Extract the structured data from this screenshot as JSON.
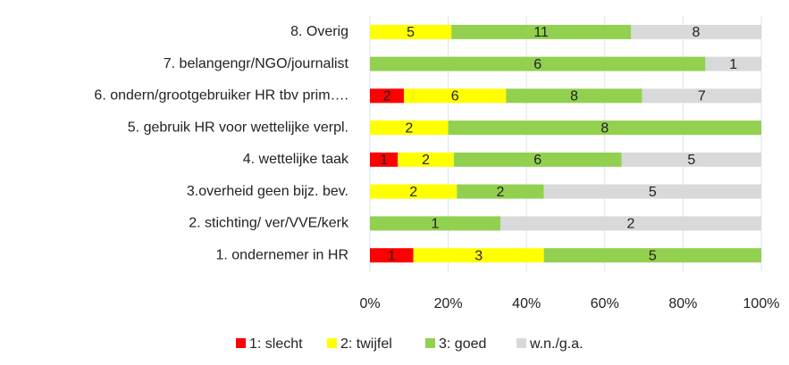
{
  "chart_data": {
    "type": "bar",
    "orientation": "horizontal",
    "stacked": "percent",
    "categories": [
      "8. Overig",
      "7. belangengr/NGO/journalist",
      "6. ondern/grootgebruiker HR tbv prim….",
      "5. gebruik HR voor wettelijke verpl.",
      "4. wettelijke taak",
      "3.overheid geen bijz. bev.",
      "2. stichting/ ver/VVE/kerk",
      "1. ondernemer in HR"
    ],
    "series": [
      {
        "name": "1: slecht",
        "color": "#ff0000",
        "values": [
          null,
          null,
          2,
          null,
          1,
          null,
          null,
          1
        ]
      },
      {
        "name": "2: twijfel",
        "color": "#ffff00",
        "values": [
          5,
          null,
          6,
          2,
          2,
          2,
          null,
          3
        ]
      },
      {
        "name": "3: goed",
        "color": "#92d050",
        "values": [
          11,
          6,
          8,
          8,
          6,
          2,
          1,
          5
        ]
      },
      {
        "name": "w.n./g.a.",
        "color": "#d9d9d9",
        "values": [
          8,
          1,
          7,
          null,
          5,
          5,
          2,
          null
        ]
      }
    ],
    "xlim": [
      0,
      100
    ],
    "xticks": [
      {
        "value": 0,
        "label": "0%"
      },
      {
        "value": 20,
        "label": "20%"
      },
      {
        "value": 40,
        "label": "40%"
      },
      {
        "value": 60,
        "label": "60%"
      },
      {
        "value": 80,
        "label": "80%"
      },
      {
        "value": 100,
        "label": "100%"
      }
    ],
    "grid": true,
    "legend": "bottom"
  }
}
